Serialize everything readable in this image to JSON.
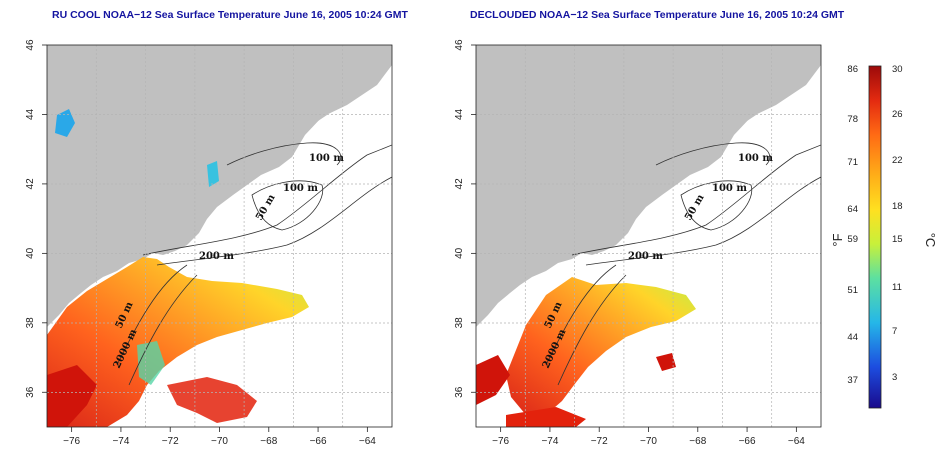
{
  "panels": [
    {
      "title": "RU COOL NOAA−12 Sea Surface Temperature June 16, 2005 10:24 GMT",
      "contour_labels": [
        "100 m",
        "100 m",
        "50 m",
        "200 m",
        "50 m",
        "2000 m"
      ]
    },
    {
      "title": "DECLOUDED NOAA−12 Sea Surface Temperature June 16, 2005 10:24 GMT",
      "contour_labels": [
        "100 m",
        "100 m",
        "50 m",
        "200 m",
        "50 m",
        "2000 m"
      ]
    }
  ],
  "axes": {
    "x_ticks": [
      "−76",
      "−74",
      "−72",
      "−70",
      "−68",
      "−66",
      "−64"
    ],
    "y_ticks": [
      "36",
      "38",
      "40",
      "42",
      "44",
      "46"
    ],
    "x_range": [
      -77,
      -63
    ],
    "y_range": [
      35,
      46
    ]
  },
  "colorbar": {
    "fahrenheit_ticks": [
      "86",
      "78",
      "71",
      "64",
      "59",
      "51",
      "44",
      "37"
    ],
    "celsius_ticks": [
      "30",
      "26",
      "22",
      "18",
      "15",
      "11",
      "7",
      "3"
    ],
    "left_unit": "°F",
    "right_unit": "°C",
    "colors": [
      "#1a0a8c",
      "#1c4de0",
      "#25b7e8",
      "#5de0a0",
      "#c8f03a",
      "#ffe020",
      "#ffae18",
      "#ff6a14",
      "#e32a10",
      "#9c0a0a"
    ]
  },
  "colors": {
    "land": "#c0c0c0",
    "water": "#ffffff",
    "title": "#1414a0",
    "grid": "#b4b4b4"
  }
}
